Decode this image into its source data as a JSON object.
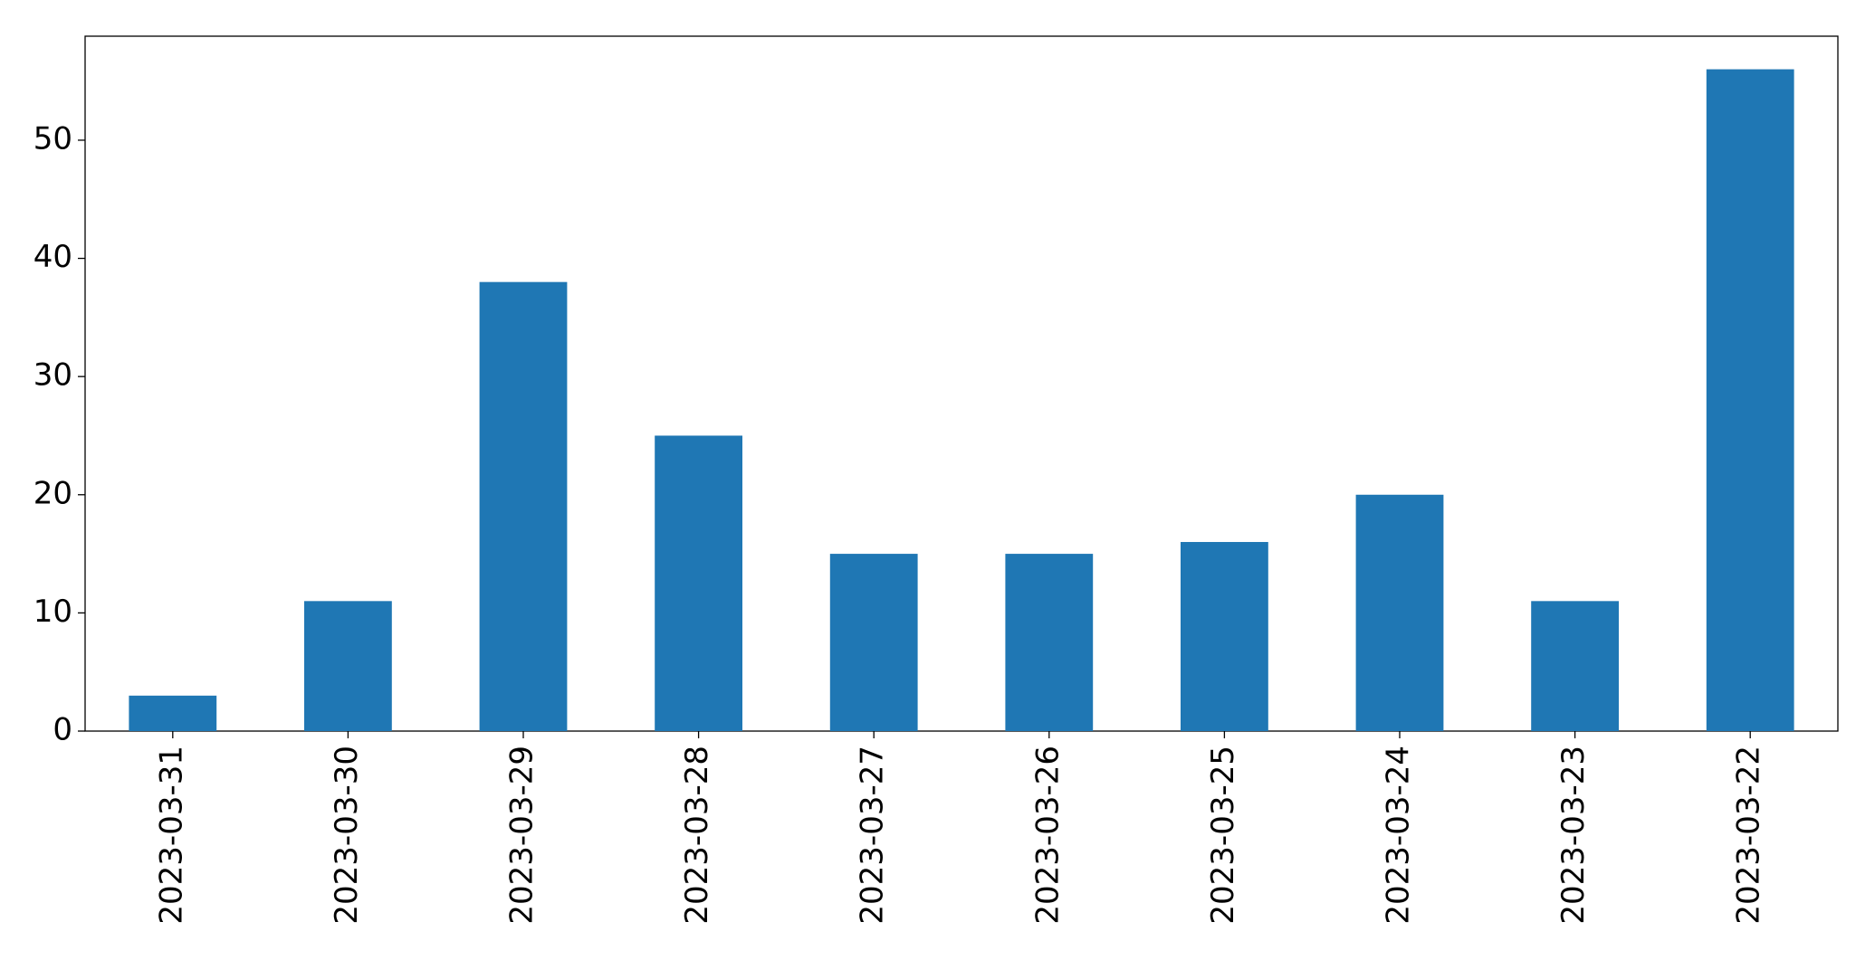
{
  "chart_data": {
    "type": "bar",
    "categories": [
      "2023-03-31",
      "2023-03-30",
      "2023-03-29",
      "2023-03-28",
      "2023-03-27",
      "2023-03-26",
      "2023-03-25",
      "2023-03-24",
      "2023-03-23",
      "2023-03-22"
    ],
    "values": [
      3,
      11,
      38,
      25,
      15,
      15,
      16,
      20,
      11,
      56
    ],
    "color": "#1f77b4",
    "ylim": [
      0,
      58.8
    ],
    "yticks": [
      0,
      10,
      20,
      30,
      40,
      50
    ],
    "grid": false
  }
}
